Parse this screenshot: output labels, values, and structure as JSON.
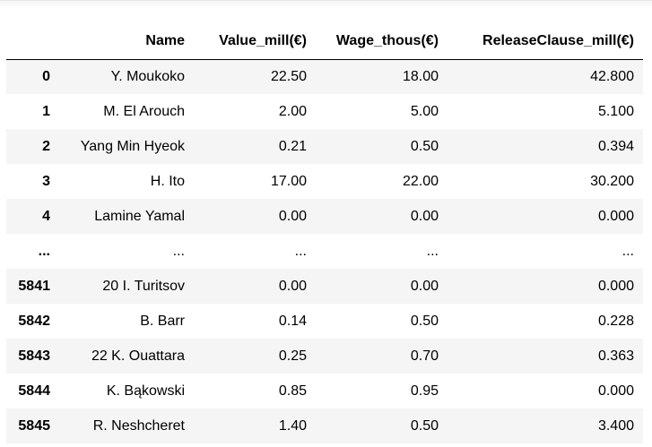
{
  "table": {
    "columns": [
      "",
      "Name",
      "Value_mill(€)",
      "Wage_thous(€)",
      "ReleaseClause_mill(€)"
    ],
    "rows": [
      {
        "index": "0",
        "name": "Y. Moukoko",
        "value": "22.50",
        "wage": "18.00",
        "release": "42.800"
      },
      {
        "index": "1",
        "name": "M. El Arouch",
        "value": "2.00",
        "wage": "5.00",
        "release": "5.100"
      },
      {
        "index": "2",
        "name": "Yang Min Hyeok",
        "value": "0.21",
        "wage": "0.50",
        "release": "0.394"
      },
      {
        "index": "3",
        "name": "H. Ito",
        "value": "17.00",
        "wage": "22.00",
        "release": "30.200"
      },
      {
        "index": "4",
        "name": "Lamine Yamal",
        "value": "0.00",
        "wage": "0.00",
        "release": "0.000"
      },
      {
        "index": "...",
        "name": "...",
        "value": "...",
        "wage": "...",
        "release": "..."
      },
      {
        "index": "5841",
        "name": "20 I. Turitsov",
        "value": "0.00",
        "wage": "0.00",
        "release": "0.000"
      },
      {
        "index": "5842",
        "name": "B. Barr",
        "value": "0.14",
        "wage": "0.50",
        "release": "0.228"
      },
      {
        "index": "5843",
        "name": "22 K. Ouattara",
        "value": "0.25",
        "wage": "0.70",
        "release": "0.363"
      },
      {
        "index": "5844",
        "name": "K. Bąkowski",
        "value": "0.85",
        "wage": "0.95",
        "release": "0.000"
      },
      {
        "index": "5845",
        "name": "R. Neshcheret",
        "value": "1.40",
        "wage": "0.50",
        "release": "3.400"
      }
    ]
  }
}
